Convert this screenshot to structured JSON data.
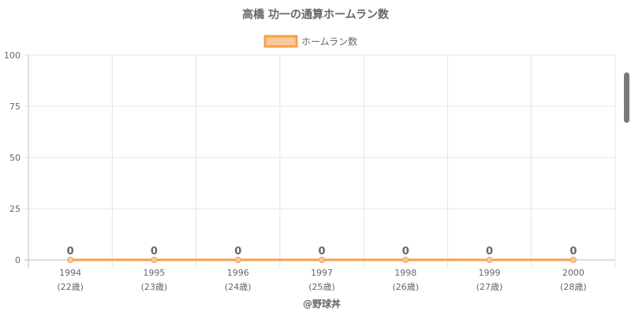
{
  "chart_data": {
    "type": "line",
    "title": "高橋 功一の通算ホームラン数",
    "categories": [
      "1994",
      "1995",
      "1996",
      "1997",
      "1998",
      "1999",
      "2000"
    ],
    "category_sublabels": [
      "(22歳)",
      "(23歳)",
      "(24歳)",
      "(25歳)",
      "(26歳)",
      "(27歳)",
      "(28歳)"
    ],
    "series": [
      {
        "name": "ホームラン数",
        "values": [
          0,
          0,
          0,
          0,
          0,
          0,
          0
        ],
        "color": "#f5a04a",
        "fill": "#f9c99a"
      }
    ],
    "data_labels": [
      "0",
      "0",
      "0",
      "0",
      "0",
      "0",
      "0"
    ],
    "ylim": [
      0,
      100
    ],
    "yticks": [
      0,
      25,
      50,
      75,
      100
    ],
    "grid": true,
    "legend_position": "top"
  },
  "credit": "@野球丼",
  "colors": {
    "grid": "#e5e5e5",
    "axis": "#bfbfbf",
    "text": "#666666",
    "scrollbar": "#7a7a7a"
  }
}
